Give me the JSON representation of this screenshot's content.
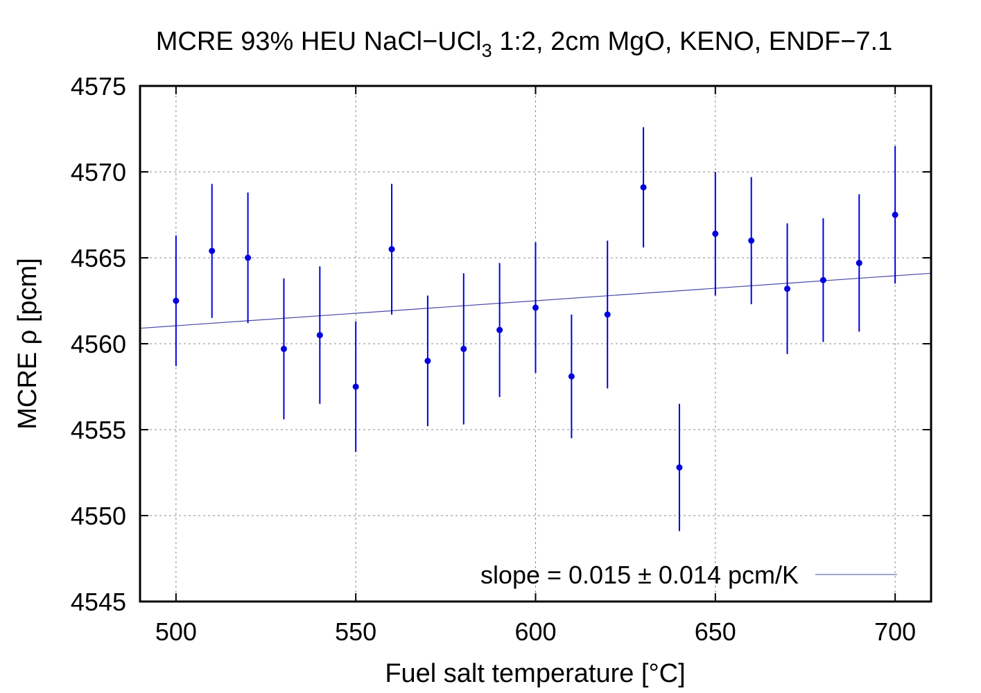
{
  "chart_data": {
    "type": "scatter",
    "title_main": "MCRE 93% HEU NaCl−UCl",
    "title_sub": "3",
    "title_rest": " 1:2, 2cm MgO, KENO, ENDF−7.1",
    "xlabel": "Fuel salt temperature [°C]",
    "ylabel": "MCRE ρ [pcm]",
    "xlim": [
      490,
      710
    ],
    "ylim": [
      4545,
      4575
    ],
    "xticks": [
      500,
      550,
      600,
      650,
      700
    ],
    "yticks": [
      4545,
      4550,
      4555,
      4560,
      4565,
      4570,
      4575
    ],
    "xtick_labels": [
      "500",
      "550",
      "600",
      "650",
      "700"
    ],
    "ytick_labels": [
      "4545",
      "4550",
      "4555",
      "4560",
      "4565",
      "4570",
      "4575"
    ],
    "grid": true,
    "legend_position": "bottom-right",
    "legend_label": "slope = 0.015 ± 0.014 pcm/K",
    "colors": {
      "points": "#0000e0",
      "fit": "#4848a8"
    },
    "points": [
      {
        "x": 500,
        "y": 4562.5,
        "err": 3.8
      },
      {
        "x": 510,
        "y": 4565.4,
        "err": 3.9
      },
      {
        "x": 520,
        "y": 4565.0,
        "err": 3.8
      },
      {
        "x": 530,
        "y": 4559.7,
        "err": 4.1
      },
      {
        "x": 540,
        "y": 4560.5,
        "err": 4.0
      },
      {
        "x": 550,
        "y": 4557.5,
        "err": 3.8
      },
      {
        "x": 560,
        "y": 4565.5,
        "err": 3.8
      },
      {
        "x": 570,
        "y": 4559.0,
        "err": 3.8
      },
      {
        "x": 580,
        "y": 4559.7,
        "err": 4.4
      },
      {
        "x": 590,
        "y": 4560.8,
        "err": 3.9
      },
      {
        "x": 600,
        "y": 4562.1,
        "err": 3.8
      },
      {
        "x": 610,
        "y": 4558.1,
        "err": 3.6
      },
      {
        "x": 620,
        "y": 4561.7,
        "err": 4.3
      },
      {
        "x": 630,
        "y": 4569.1,
        "err": 3.5
      },
      {
        "x": 640,
        "y": 4552.8,
        "err": 3.7
      },
      {
        "x": 650,
        "y": 4566.4,
        "err": 3.6
      },
      {
        "x": 660,
        "y": 4566.0,
        "err": 3.7
      },
      {
        "x": 670,
        "y": 4563.2,
        "err": 3.8
      },
      {
        "x": 680,
        "y": 4563.7,
        "err": 3.6
      },
      {
        "x": 690,
        "y": 4564.7,
        "err": 4.0
      },
      {
        "x": 700,
        "y": 4567.5,
        "err": 4.0
      }
    ],
    "fit": {
      "x": [
        490,
        710
      ],
      "y": [
        4560.9,
        4564.1
      ]
    }
  }
}
